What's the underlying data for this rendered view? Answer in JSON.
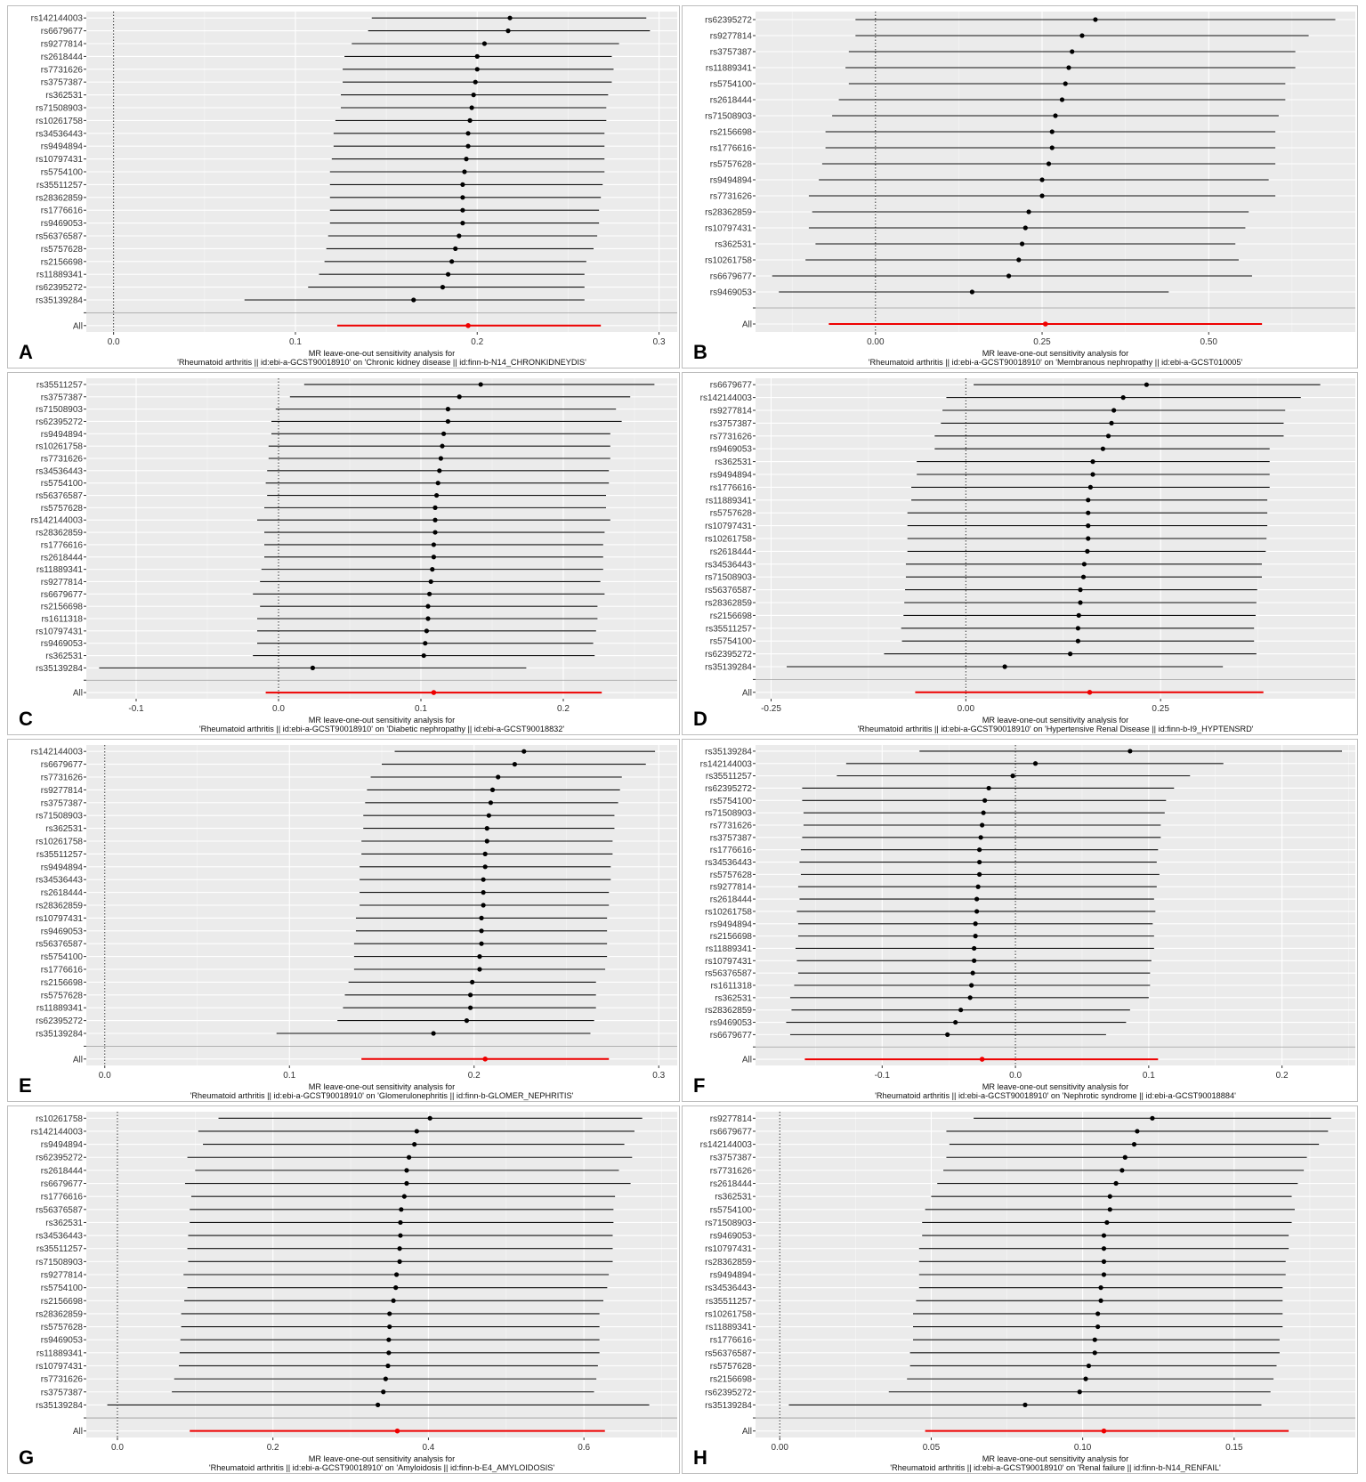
{
  "figure": {
    "caption_line1": "MR leave-one-out sensitivity analysis for",
    "all_label": "All"
  },
  "chart_data": [
    {
      "type": "forest",
      "panel": "A",
      "title": "MR leave-one-out sensitivity analysis for",
      "subtitle": "'Rheumatoid arthritis || id:ebi-a-GCST90018910' on 'Chronic kidney disease || id:finn-b-N14_CHRONKIDNEYDIS'",
      "xlim": [
        -0.015,
        0.31
      ],
      "xticks": [
        0.0,
        0.1,
        0.2,
        0.3
      ],
      "xticklabels": [
        "0.0",
        "0.1",
        "0.2",
        "0.3"
      ],
      "snps": [
        "rs142144003",
        "rs6679677",
        "rs9277814",
        "rs2618444",
        "rs7731626",
        "rs3757387",
        "rs362531",
        "rs71508903",
        "rs10261758",
        "rs34536443",
        "rs9494894",
        "rs10797431",
        "rs5754100",
        "rs35511257",
        "rs28362859",
        "rs1776616",
        "rs9469053",
        "rs56376587",
        "rs5757628",
        "rs2156698",
        "rs11889341",
        "rs62395272",
        "rs35139284"
      ],
      "estimates": [
        0.218,
        0.217,
        0.204,
        0.2,
        0.2,
        0.199,
        0.198,
        0.197,
        0.196,
        0.195,
        0.195,
        0.194,
        0.193,
        0.192,
        0.192,
        0.192,
        0.192,
        0.19,
        0.188,
        0.186,
        0.184,
        0.181,
        0.165
      ],
      "lower": [
        0.142,
        0.14,
        0.131,
        0.127,
        0.126,
        0.126,
        0.125,
        0.125,
        0.122,
        0.121,
        0.121,
        0.12,
        0.119,
        0.119,
        0.119,
        0.119,
        0.119,
        0.118,
        0.117,
        0.116,
        0.113,
        0.107,
        0.072
      ],
      "upper": [
        0.293,
        0.295,
        0.278,
        0.274,
        0.275,
        0.274,
        0.272,
        0.271,
        0.271,
        0.27,
        0.27,
        0.27,
        0.27,
        0.269,
        0.268,
        0.267,
        0.267,
        0.266,
        0.264,
        0.26,
        0.259,
        0.259,
        0.259
      ],
      "overall": {
        "label": "All",
        "estimate": 0.195,
        "lower": 0.123,
        "upper": 0.268
      }
    },
    {
      "type": "forest",
      "panel": "B",
      "title": "MR leave-one-out sensitivity analysis for",
      "subtitle": "'Rheumatoid arthritis || id:ebi-a-GCST90018910' on 'Membranous nephropathy || id:ebi-a-GCST010005'",
      "xlim": [
        -0.18,
        0.72
      ],
      "xticks": [
        0.0,
        0.25,
        0.5
      ],
      "xticklabels": [
        "0.00",
        "0.25",
        "0.50"
      ],
      "snps": [
        "rs62395272",
        "rs9277814",
        "rs3757387",
        "rs11889341",
        "rs5754100",
        "rs2618444",
        "rs71508903",
        "rs2156698",
        "rs1776616",
        "rs5757628",
        "rs9494894",
        "rs7731626",
        "rs28362859",
        "rs10797431",
        "rs362531",
        "rs10261758",
        "rs6679677",
        "rs9469053"
      ],
      "estimates": [
        0.33,
        0.31,
        0.295,
        0.29,
        0.285,
        0.28,
        0.27,
        0.265,
        0.265,
        0.26,
        0.25,
        0.25,
        0.23,
        0.225,
        0.22,
        0.215,
        0.2,
        0.145
      ],
      "lower": [
        -0.03,
        -0.03,
        -0.04,
        -0.045,
        -0.04,
        -0.055,
        -0.065,
        -0.075,
        -0.075,
        -0.08,
        -0.085,
        -0.1,
        -0.095,
        -0.1,
        -0.09,
        -0.105,
        -0.155,
        -0.145
      ],
      "upper": [
        0.69,
        0.65,
        0.63,
        0.63,
        0.615,
        0.615,
        0.605,
        0.6,
        0.6,
        0.6,
        0.59,
        0.6,
        0.56,
        0.555,
        0.54,
        0.545,
        0.565,
        0.44
      ],
      "overall": {
        "label": "All",
        "estimate": 0.255,
        "lower": -0.07,
        "upper": 0.58
      }
    },
    {
      "type": "forest",
      "panel": "C",
      "title": "MR leave-one-out sensitivity analysis for",
      "subtitle": "'Rheumatoid arthritis || id:ebi-a-GCST90018910' on 'Diabetic nephropathy || id:ebi-a-GCST90018832'",
      "xlim": [
        -0.135,
        0.28
      ],
      "xticks": [
        -0.1,
        0.0,
        0.1,
        0.2
      ],
      "xticklabels": [
        "-0.1",
        "0.0",
        "0.1",
        "0.2"
      ],
      "snps": [
        "rs35511257",
        "rs3757387",
        "rs71508903",
        "rs62395272",
        "rs9494894",
        "rs10261758",
        "rs7731626",
        "rs34536443",
        "rs5754100",
        "rs56376587",
        "rs5757628",
        "rs142144003",
        "rs28362859",
        "rs1776616",
        "rs2618444",
        "rs11889341",
        "rs9277814",
        "rs6679677",
        "rs2156698",
        "rs1611318",
        "rs10797431",
        "rs9469053",
        "rs362531",
        "rs35139284"
      ],
      "estimates": [
        0.142,
        0.127,
        0.119,
        0.119,
        0.116,
        0.115,
        0.114,
        0.113,
        0.112,
        0.111,
        0.11,
        0.11,
        0.11,
        0.109,
        0.109,
        0.108,
        0.107,
        0.106,
        0.105,
        0.105,
        0.104,
        0.103,
        0.102,
        0.024
      ],
      "lower": [
        0.018,
        0.008,
        -0.002,
        -0.005,
        -0.005,
        -0.007,
        -0.007,
        -0.008,
        -0.009,
        -0.008,
        -0.01,
        -0.015,
        -0.01,
        -0.01,
        -0.01,
        -0.012,
        -0.013,
        -0.018,
        -0.013,
        -0.015,
        -0.015,
        -0.015,
        -0.018,
        -0.126
      ],
      "upper": [
        0.264,
        0.247,
        0.237,
        0.241,
        0.233,
        0.233,
        0.233,
        0.232,
        0.232,
        0.23,
        0.23,
        0.233,
        0.229,
        0.228,
        0.228,
        0.228,
        0.226,
        0.229,
        0.224,
        0.224,
        0.223,
        0.221,
        0.222,
        0.174
      ],
      "overall": {
        "label": "All",
        "estimate": 0.109,
        "lower": -0.009,
        "upper": 0.227
      }
    },
    {
      "type": "forest",
      "panel": "D",
      "title": "MR leave-one-out sensitivity analysis for",
      "subtitle": "'Rheumatoid arthritis || id:ebi-a-GCST90018910' on 'Hypertensive Renal Disease || id:finn-b-I9_HYPTENSRD'",
      "xlim": [
        -0.27,
        0.5
      ],
      "xticks": [
        -0.25,
        0.0,
        0.25
      ],
      "xticklabels": [
        "-0.25",
        "0.00",
        "0.25"
      ],
      "snps": [
        "rs6679677",
        "rs142144003",
        "rs9277814",
        "rs3757387",
        "rs7731626",
        "rs9469053",
        "rs362531",
        "rs9494894",
        "rs1776616",
        "rs11889341",
        "rs5757628",
        "rs10797431",
        "rs10261758",
        "rs2618444",
        "rs34536443",
        "rs71508903",
        "rs56376587",
        "rs28362859",
        "rs2156698",
        "rs35511257",
        "rs5754100",
        "rs62395272",
        "rs35139284"
      ],
      "estimates": [
        0.232,
        0.202,
        0.19,
        0.187,
        0.183,
        0.176,
        0.163,
        0.163,
        0.16,
        0.157,
        0.157,
        0.157,
        0.157,
        0.156,
        0.152,
        0.151,
        0.147,
        0.147,
        0.145,
        0.144,
        0.144,
        0.134,
        0.05
      ],
      "lower": [
        0.01,
        -0.025,
        -0.03,
        -0.032,
        -0.04,
        -0.04,
        -0.063,
        -0.063,
        -0.07,
        -0.07,
        -0.075,
        -0.075,
        -0.075,
        -0.075,
        -0.077,
        -0.077,
        -0.078,
        -0.079,
        -0.08,
        -0.083,
        -0.082,
        -0.105,
        -0.23
      ],
      "upper": [
        0.455,
        0.43,
        0.41,
        0.408,
        0.408,
        0.39,
        0.39,
        0.39,
        0.39,
        0.387,
        0.387,
        0.387,
        0.386,
        0.385,
        0.38,
        0.38,
        0.374,
        0.373,
        0.372,
        0.37,
        0.37,
        0.373,
        0.33
      ],
      "overall": {
        "label": "All",
        "estimate": 0.159,
        "lower": -0.065,
        "upper": 0.382
      }
    },
    {
      "type": "forest",
      "panel": "E",
      "title": "MR leave-one-out sensitivity analysis for",
      "subtitle": "'Rheumatoid arthritis || id:ebi-a-GCST90018910' on 'Glomerulonephritis || id:finn-b-GLOMER_NEPHRITIS'",
      "xlim": [
        -0.01,
        0.31
      ],
      "xticks": [
        0.0,
        0.1,
        0.2,
        0.3
      ],
      "xticklabels": [
        "0.0",
        "0.1",
        "0.2",
        "0.3"
      ],
      "snps": [
        "rs142144003",
        "rs6679677",
        "rs7731626",
        "rs9277814",
        "rs3757387",
        "rs71508903",
        "rs362531",
        "rs10261758",
        "rs35511257",
        "rs9494894",
        "rs34536443",
        "rs2618444",
        "rs28362859",
        "rs10797431",
        "rs9469053",
        "rs56376587",
        "rs5754100",
        "rs1776616",
        "rs2156698",
        "rs5757628",
        "rs11889341",
        "rs62395272",
        "rs35139284"
      ],
      "estimates": [
        0.227,
        0.222,
        0.213,
        0.21,
        0.209,
        0.208,
        0.207,
        0.207,
        0.206,
        0.206,
        0.205,
        0.205,
        0.205,
        0.204,
        0.204,
        0.204,
        0.203,
        0.203,
        0.199,
        0.198,
        0.198,
        0.196,
        0.178
      ],
      "lower": [
        0.157,
        0.15,
        0.144,
        0.142,
        0.141,
        0.14,
        0.14,
        0.139,
        0.139,
        0.138,
        0.138,
        0.138,
        0.138,
        0.136,
        0.136,
        0.135,
        0.135,
        0.135,
        0.132,
        0.13,
        0.129,
        0.126,
        0.093
      ],
      "upper": [
        0.298,
        0.293,
        0.28,
        0.279,
        0.278,
        0.276,
        0.276,
        0.275,
        0.275,
        0.274,
        0.274,
        0.273,
        0.273,
        0.272,
        0.272,
        0.272,
        0.272,
        0.271,
        0.266,
        0.266,
        0.266,
        0.265,
        0.263
      ],
      "overall": {
        "label": "All",
        "estimate": 0.206,
        "lower": 0.139,
        "upper": 0.273
      }
    },
    {
      "type": "forest",
      "panel": "F",
      "title": "MR leave-one-out sensitivity analysis for",
      "subtitle": "'Rheumatoid arthritis || id:ebi-a-GCST90018910' on 'Nephrotic syndrome || id:ebi-a-GCST90018884'",
      "xlim": [
        -0.195,
        0.255
      ],
      "xticks": [
        -0.1,
        0.0,
        0.1,
        0.2
      ],
      "xticklabels": [
        "-0.1",
        "0.0",
        "0.1",
        "0.2"
      ],
      "snps": [
        "rs35139284",
        "rs142144003",
        "rs35511257",
        "rs62395272",
        "rs5754100",
        "rs71508903",
        "rs7731626",
        "rs3757387",
        "rs1776616",
        "rs34536443",
        "rs5757628",
        "rs9277814",
        "rs2618444",
        "rs10261758",
        "rs9494894",
        "rs2156698",
        "rs11889341",
        "rs10797431",
        "rs56376587",
        "rs1611318",
        "rs362531",
        "rs28362859",
        "rs9469053",
        "rs6679677"
      ],
      "estimates": [
        0.086,
        0.015,
        -0.002,
        -0.02,
        -0.023,
        -0.024,
        -0.025,
        -0.026,
        -0.027,
        -0.027,
        -0.027,
        -0.028,
        -0.029,
        -0.029,
        -0.03,
        -0.03,
        -0.031,
        -0.031,
        -0.032,
        -0.033,
        -0.034,
        -0.041,
        -0.045,
        -0.051
      ],
      "lower": [
        -0.072,
        -0.127,
        -0.134,
        -0.16,
        -0.16,
        -0.159,
        -0.159,
        -0.16,
        -0.161,
        -0.162,
        -0.161,
        -0.163,
        -0.162,
        -0.164,
        -0.163,
        -0.163,
        -0.165,
        -0.164,
        -0.163,
        -0.166,
        -0.169,
        -0.168,
        -0.172,
        -0.169
      ],
      "upper": [
        0.245,
        0.156,
        0.131,
        0.119,
        0.113,
        0.112,
        0.109,
        0.109,
        0.107,
        0.106,
        0.108,
        0.106,
        0.104,
        0.105,
        0.103,
        0.104,
        0.104,
        0.102,
        0.101,
        0.101,
        0.1,
        0.086,
        0.083,
        0.068
      ],
      "overall": {
        "label": "All",
        "estimate": -0.025,
        "lower": -0.158,
        "upper": 0.107
      }
    },
    {
      "type": "forest",
      "panel": "G",
      "title": "MR leave-one-out sensitivity analysis for",
      "subtitle": "'Rheumatoid arthritis || id:ebi-a-GCST90018910' on 'Amyloidosis || id:finn-b-E4_AMYLOIDOSIS'",
      "xlim": [
        -0.04,
        0.72
      ],
      "xticks": [
        0.0,
        0.2,
        0.4,
        0.6
      ],
      "xticklabels": [
        "0.0",
        "0.2",
        "0.4",
        "0.6"
      ],
      "snps": [
        "rs10261758",
        "rs142144003",
        "rs9494894",
        "rs62395272",
        "rs2618444",
        "rs6679677",
        "rs1776616",
        "rs56376587",
        "rs362531",
        "rs34536443",
        "rs35511257",
        "rs71508903",
        "rs9277814",
        "rs5754100",
        "rs2156698",
        "rs28362859",
        "rs5757628",
        "rs9469053",
        "rs11889341",
        "rs10797431",
        "rs7731626",
        "rs3757387",
        "rs35139284"
      ],
      "estimates": [
        0.402,
        0.385,
        0.382,
        0.375,
        0.372,
        0.372,
        0.369,
        0.365,
        0.364,
        0.364,
        0.363,
        0.363,
        0.359,
        0.358,
        0.355,
        0.35,
        0.35,
        0.349,
        0.349,
        0.348,
        0.345,
        0.342,
        0.335
      ],
      "lower": [
        0.13,
        0.104,
        0.11,
        0.09,
        0.1,
        0.087,
        0.095,
        0.093,
        0.093,
        0.091,
        0.09,
        0.091,
        0.085,
        0.09,
        0.086,
        0.082,
        0.082,
        0.081,
        0.08,
        0.079,
        0.073,
        0.07,
        -0.013
      ],
      "upper": [
        0.675,
        0.665,
        0.652,
        0.662,
        0.645,
        0.66,
        0.64,
        0.638,
        0.638,
        0.637,
        0.637,
        0.637,
        0.632,
        0.63,
        0.625,
        0.62,
        0.62,
        0.62,
        0.62,
        0.618,
        0.616,
        0.613,
        0.684
      ],
      "overall": {
        "label": "All",
        "estimate": 0.36,
        "lower": 0.093,
        "upper": 0.627
      }
    },
    {
      "type": "forest",
      "panel": "H",
      "title": "MR leave-one-out sensitivity analysis for",
      "subtitle": "'Rheumatoid arthritis || id:ebi-a-GCST90018910' on 'Renal failure || id:finn-b-N14_RENFAIL'",
      "xlim": [
        -0.008,
        0.19
      ],
      "xticks": [
        0.0,
        0.05,
        0.1,
        0.15
      ],
      "xticklabels": [
        "0.00",
        "0.05",
        "0.10",
        "0.15"
      ],
      "snps": [
        "rs9277814",
        "rs6679677",
        "rs142144003",
        "rs3757387",
        "rs7731626",
        "rs2618444",
        "rs362531",
        "rs5754100",
        "rs71508903",
        "rs9469053",
        "rs10797431",
        "rs28362859",
        "rs9494894",
        "rs34536443",
        "rs35511257",
        "rs10261758",
        "rs11889341",
        "rs1776616",
        "rs56376587",
        "rs5757628",
        "rs2156698",
        "rs62395272",
        "rs35139284"
      ],
      "estimates": [
        0.123,
        0.118,
        0.117,
        0.114,
        0.113,
        0.111,
        0.109,
        0.109,
        0.108,
        0.107,
        0.107,
        0.107,
        0.107,
        0.106,
        0.106,
        0.105,
        0.105,
        0.104,
        0.104,
        0.102,
        0.101,
        0.099,
        0.081
      ],
      "lower": [
        0.064,
        0.055,
        0.056,
        0.055,
        0.054,
        0.052,
        0.05,
        0.048,
        0.047,
        0.047,
        0.046,
        0.046,
        0.046,
        0.046,
        0.045,
        0.044,
        0.044,
        0.044,
        0.043,
        0.043,
        0.042,
        0.036,
        0.003
      ],
      "upper": [
        0.182,
        0.181,
        0.178,
        0.174,
        0.173,
        0.171,
        0.169,
        0.17,
        0.169,
        0.168,
        0.168,
        0.167,
        0.167,
        0.166,
        0.166,
        0.166,
        0.166,
        0.165,
        0.165,
        0.164,
        0.163,
        0.162,
        0.159
      ],
      "overall": {
        "label": "All",
        "estimate": 0.107,
        "lower": 0.048,
        "upper": 0.168
      }
    }
  ]
}
